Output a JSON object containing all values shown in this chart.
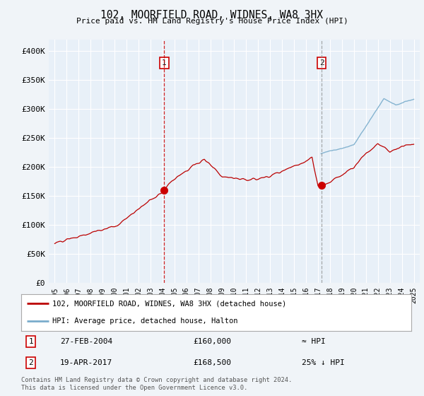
{
  "title": "102, MOORFIELD ROAD, WIDNES, WA8 3HX",
  "subtitle": "Price paid vs. HM Land Registry's House Price Index (HPI)",
  "ylabel_ticks": [
    "£0",
    "£50K",
    "£100K",
    "£150K",
    "£200K",
    "£250K",
    "£300K",
    "£350K",
    "£400K"
  ],
  "ytick_vals": [
    0,
    50000,
    100000,
    150000,
    200000,
    250000,
    300000,
    350000,
    400000
  ],
  "ylim": [
    0,
    420000
  ],
  "xlim_start": 1994.5,
  "xlim_end": 2025.5,
  "sale1_x": 2004.15,
  "sale1_y": 160000,
  "sale2_x": 2017.3,
  "sale2_y": 168500,
  "legend_red_label": "102, MOORFIELD ROAD, WIDNES, WA8 3HX (detached house)",
  "legend_blue_label": "HPI: Average price, detached house, Halton",
  "table_row1_num": "1",
  "table_row1_date": "27-FEB-2004",
  "table_row1_price": "£160,000",
  "table_row1_hpi": "≈ HPI",
  "table_row2_num": "2",
  "table_row2_date": "19-APR-2017",
  "table_row2_price": "£168,500",
  "table_row2_hpi": "25% ↓ HPI",
  "footer": "Contains HM Land Registry data © Crown copyright and database right 2024.\nThis data is licensed under the Open Government Licence v3.0.",
  "bg_color": "#f0f4f8",
  "plot_bg_color": "#e8f0f8",
  "grid_color": "#ffffff",
  "red_line_color": "#bb0000",
  "blue_line_color": "#7aadcc",
  "dashed_color": "#cc0000",
  "marker_color": "#cc0000",
  "xtick_years": [
    1995,
    1996,
    1997,
    1998,
    1999,
    2000,
    2001,
    2002,
    2003,
    2004,
    2005,
    2006,
    2007,
    2008,
    2009,
    2010,
    2011,
    2012,
    2013,
    2014,
    2015,
    2016,
    2017,
    2018,
    2019,
    2020,
    2021,
    2022,
    2023,
    2024,
    2025
  ]
}
